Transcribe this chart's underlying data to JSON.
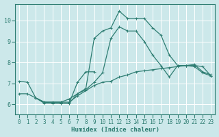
{
  "xlabel": "Humidex (Indice chaleur)",
  "bg_color": "#cce8ea",
  "grid_color": "#ffffff",
  "line_color": "#2e7d72",
  "xlim": [
    -0.5,
    23.5
  ],
  "ylim": [
    5.5,
    10.8
  ],
  "xticks": [
    0,
    1,
    2,
    3,
    4,
    5,
    6,
    7,
    8,
    9,
    10,
    11,
    12,
    13,
    14,
    15,
    16,
    17,
    18,
    19,
    20,
    21,
    22,
    23
  ],
  "yticks": [
    6,
    7,
    8,
    9,
    10
  ],
  "curve1_x": [
    0,
    1,
    2,
    3,
    4,
    5,
    6,
    7,
    8,
    9,
    10,
    11,
    12,
    13,
    14,
    15,
    16,
    17,
    18,
    19,
    20,
    21,
    22,
    23
  ],
  "curve1_y": [
    7.1,
    7.05,
    6.3,
    6.05,
    6.05,
    6.05,
    6.05,
    6.5,
    6.75,
    9.15,
    9.5,
    9.65,
    10.45,
    10.1,
    10.1,
    10.1,
    9.65,
    9.3,
    8.35,
    7.85,
    7.85,
    7.8,
    7.5,
    7.35
  ],
  "curve2_x": [
    2,
    3,
    4,
    5,
    6,
    7,
    8,
    9,
    10,
    11,
    12,
    13,
    14,
    15,
    16,
    17,
    18,
    19,
    20,
    21,
    22,
    23
  ],
  "curve2_y": [
    6.3,
    6.1,
    6.1,
    6.1,
    6.25,
    6.5,
    6.7,
    7.05,
    7.5,
    9.15,
    9.7,
    9.5,
    9.5,
    9.0,
    8.35,
    7.85,
    7.3,
    7.85,
    7.85,
    7.85,
    7.8,
    7.35
  ],
  "curve3_x": [
    2,
    3,
    4,
    5,
    6,
    7,
    8,
    9
  ],
  "curve3_y": [
    6.3,
    6.1,
    6.05,
    6.05,
    6.05,
    7.05,
    7.55,
    7.55
  ],
  "curve4_x": [
    0,
    1,
    2,
    3,
    4,
    5,
    6,
    7,
    8,
    9,
    10,
    11,
    12,
    13,
    14,
    15,
    16,
    17,
    18,
    19,
    20,
    21,
    22,
    23
  ],
  "curve4_y": [
    6.5,
    6.5,
    6.3,
    6.1,
    6.1,
    6.1,
    6.1,
    6.4,
    6.65,
    6.9,
    7.05,
    7.1,
    7.3,
    7.4,
    7.55,
    7.6,
    7.65,
    7.7,
    7.75,
    7.8,
    7.85,
    7.9,
    7.55,
    7.4
  ],
  "marker_size": 2.5,
  "line_width": 0.9,
  "tick_fontsize": 5.5,
  "xlabel_fontsize": 6.5
}
